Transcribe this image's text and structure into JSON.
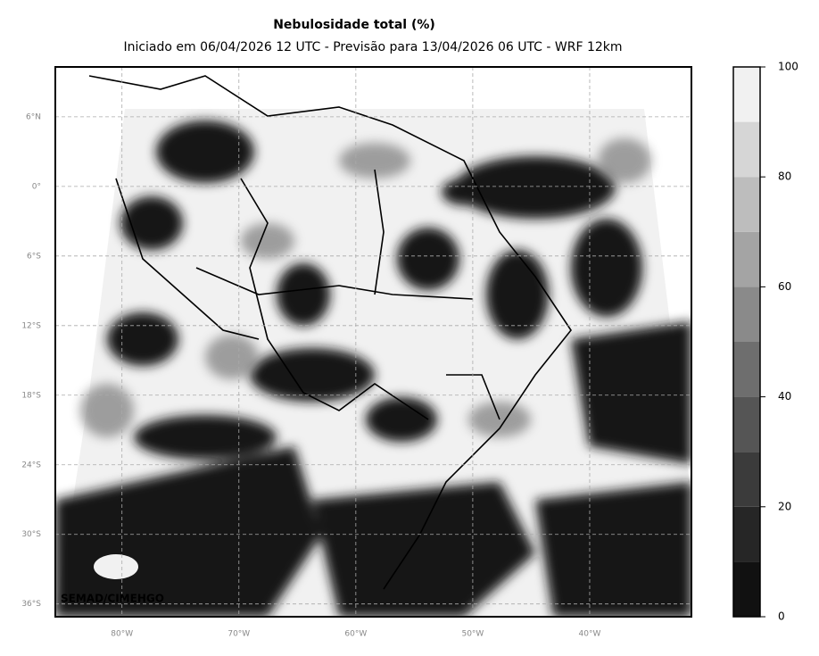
{
  "map": {
    "title": "Nebulosidade total (%)",
    "subtitle": "Iniciado em 06/04/2026 12 UTC - Previsão para 13/04/2026 06 UTC - WRF 12km",
    "credit": "SEMAD/CIMEHGO",
    "xlim": [
      -85.7,
      -31.3
    ],
    "ylim": [
      -37.1,
      10.3
    ],
    "xticks": [
      {
        "value": -80,
        "label": "80°W"
      },
      {
        "value": -70,
        "label": "70°W"
      },
      {
        "value": -60,
        "label": "60°W"
      },
      {
        "value": -50,
        "label": "50°W"
      },
      {
        "value": -40,
        "label": "40°W"
      }
    ],
    "yticks": [
      {
        "value": 6,
        "label": "6°N"
      },
      {
        "value": 0,
        "label": "0°"
      },
      {
        "value": -6,
        "label": "6°S"
      },
      {
        "value": -12,
        "label": "12°S"
      },
      {
        "value": -18,
        "label": "18°S"
      },
      {
        "value": -24,
        "label": "24°S"
      },
      {
        "value": -30,
        "label": "30°S"
      },
      {
        "value": -36,
        "label": "36°S"
      }
    ],
    "grid": true,
    "colorbar": {
      "levels": [
        0,
        10,
        20,
        30,
        40,
        50,
        60,
        70,
        80,
        90,
        100
      ],
      "colors": [
        "#111111",
        "#262626",
        "#3b3b3b",
        "#555555",
        "#6e6e6e",
        "#8a8a8a",
        "#a4a4a4",
        "#bdbdbd",
        "#d6d6d6",
        "#f1f1f1"
      ],
      "ticks": [
        0,
        20,
        40,
        60,
        80,
        100
      ]
    }
  }
}
